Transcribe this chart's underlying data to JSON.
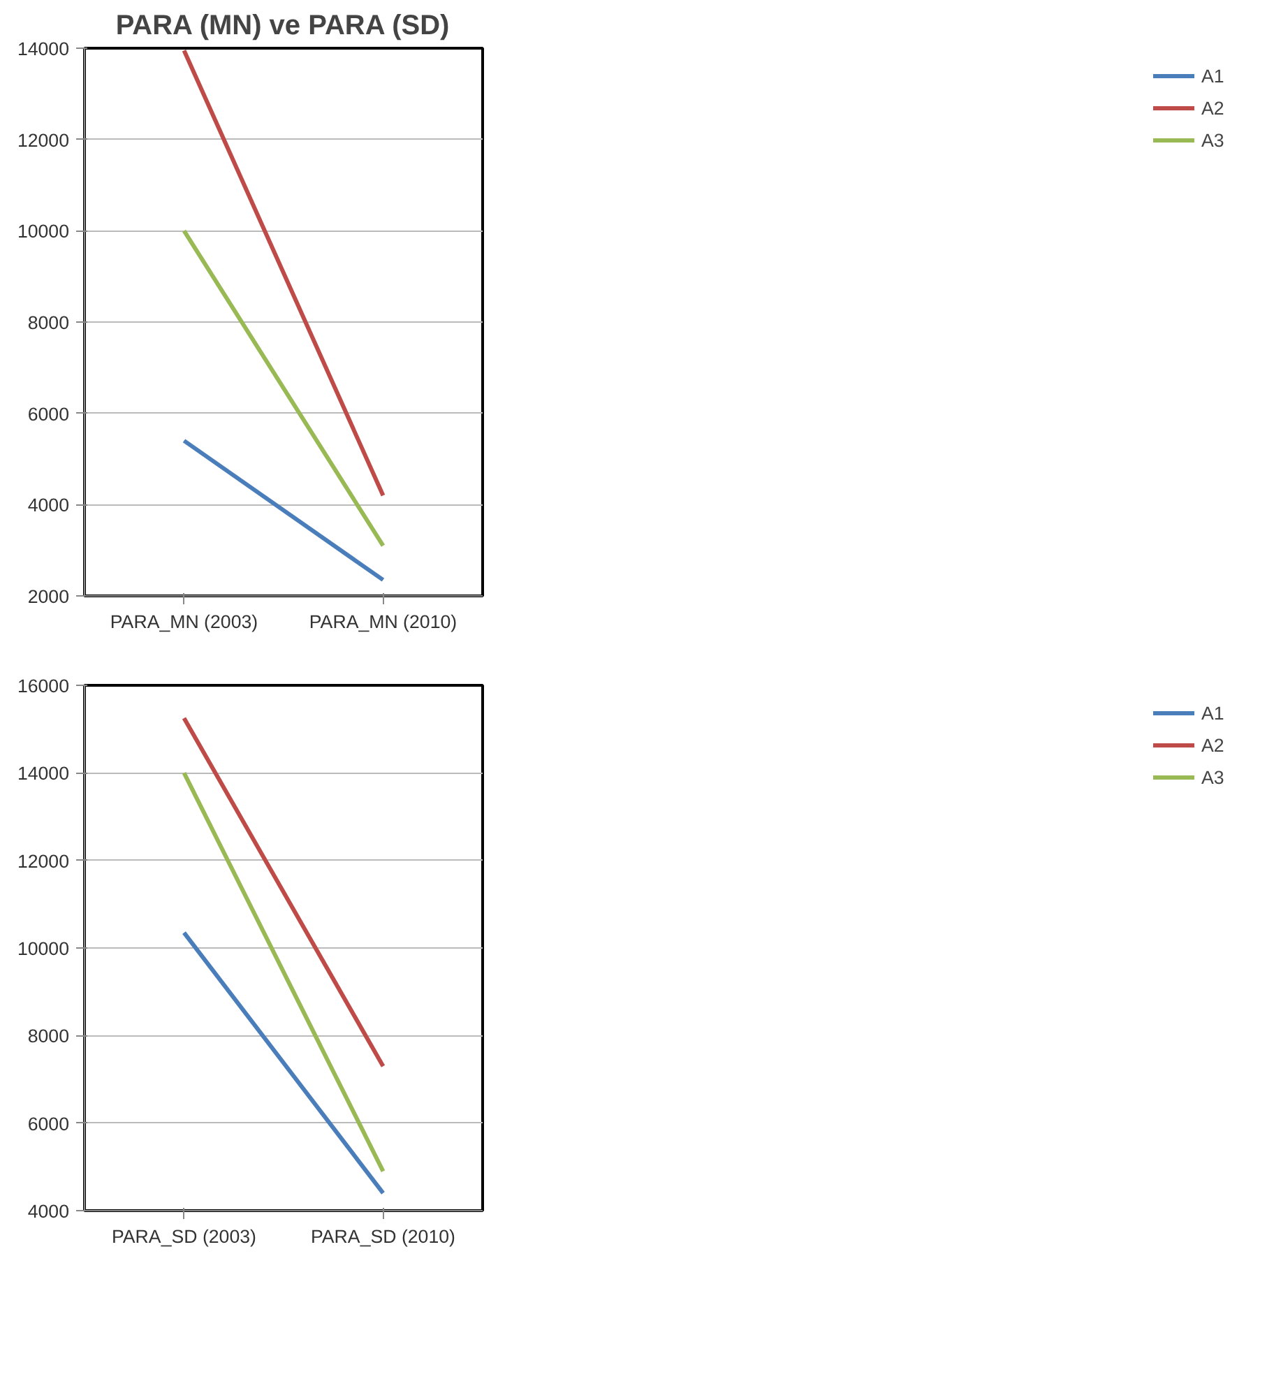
{
  "chart_data": [
    {
      "type": "line",
      "title": "PARA (MN) ve PARA (SD)",
      "categories": [
        "PARA_MN (2003)",
        "PARA_MN (2010)"
      ],
      "ylim": [
        2000,
        14000
      ],
      "yticks": [
        2000,
        4000,
        6000,
        8000,
        10000,
        12000,
        14000
      ],
      "grid": "y",
      "legend": "right",
      "marker": "none",
      "series": [
        {
          "name": "A1",
          "color": "#4a7ebb",
          "values": [
            5400,
            2350
          ]
        },
        {
          "name": "A2",
          "color": "#be4b48",
          "values": [
            13950,
            4200
          ]
        },
        {
          "name": "A3",
          "color": "#98b954",
          "values": [
            10000,
            3100
          ]
        }
      ]
    },
    {
      "type": "line",
      "categories": [
        "PARA_SD (2003)",
        "PARA_SD (2010)"
      ],
      "ylim": [
        4000,
        16000
      ],
      "yticks": [
        4000,
        6000,
        8000,
        10000,
        12000,
        14000,
        16000
      ],
      "grid": "y",
      "legend": "right",
      "marker": "none",
      "series": [
        {
          "name": "A1",
          "color": "#4a7ebb",
          "values": [
            10350,
            4400
          ]
        },
        {
          "name": "A2",
          "color": "#be4b48",
          "values": [
            15250,
            7300
          ]
        },
        {
          "name": "A3",
          "color": "#98b954",
          "values": [
            14000,
            4900
          ]
        }
      ]
    }
  ]
}
